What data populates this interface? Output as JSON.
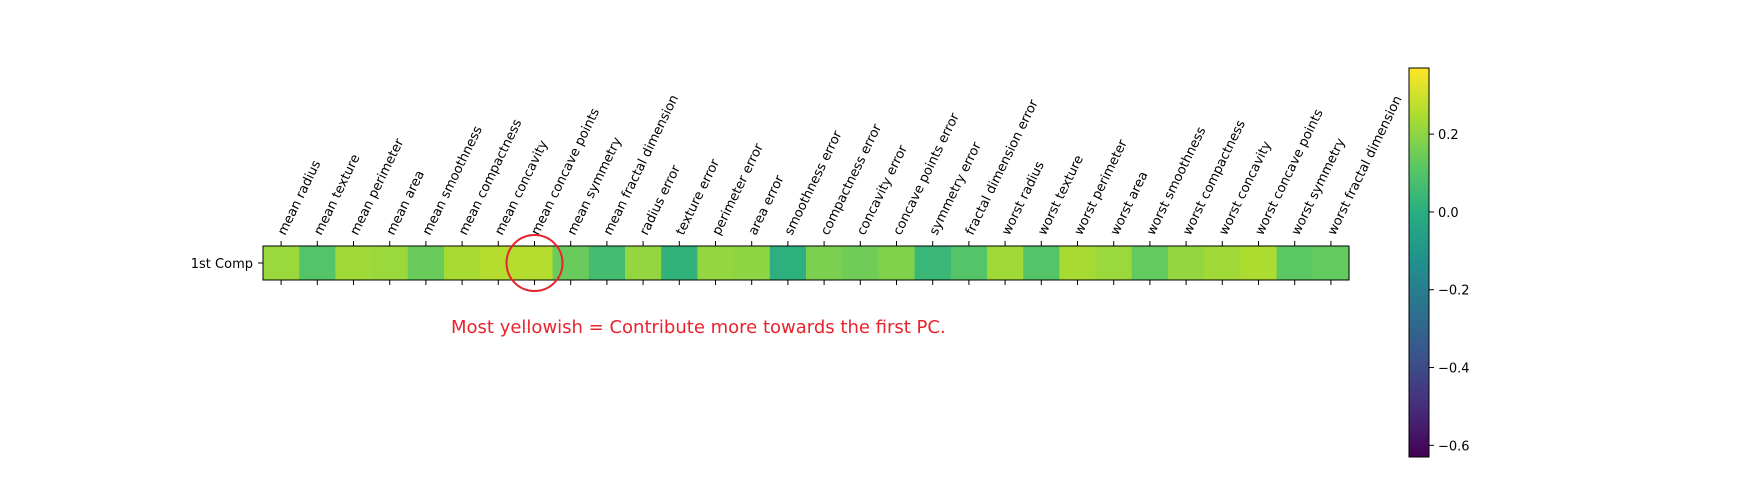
{
  "chart_data": {
    "type": "heatmap",
    "rows": [
      "1st Comp"
    ],
    "columns": [
      "mean radius",
      "mean texture",
      "mean perimeter",
      "mean area",
      "mean smoothness",
      "mean compactness",
      "mean concavity",
      "mean concave points",
      "mean symmetry",
      "mean fractal dimension",
      "radius error",
      "texture error",
      "perimeter error",
      "area error",
      "smoothness error",
      "compactness error",
      "concavity error",
      "concave points error",
      "symmetry error",
      "fractal dimension error",
      "worst radius",
      "worst texture",
      "worst perimeter",
      "worst area",
      "worst smoothness",
      "worst compactness",
      "worst concavity",
      "worst concave points",
      "worst symmetry",
      "worst fractal dimension"
    ],
    "values": [
      [
        0.22,
        0.1,
        0.23,
        0.22,
        0.14,
        0.24,
        0.26,
        0.26,
        0.14,
        0.06,
        0.21,
        0.02,
        0.21,
        0.2,
        0.01,
        0.17,
        0.15,
        0.18,
        0.04,
        0.1,
        0.23,
        0.1,
        0.24,
        0.22,
        0.13,
        0.21,
        0.23,
        0.25,
        0.12,
        0.13
      ]
    ],
    "colormap": "viridis",
    "vmin": -0.63,
    "vmax": 0.37,
    "colorbar_ticks": [
      0.2,
      0.0,
      -0.2,
      -0.4,
      -0.6
    ],
    "colorbar_tick_labels": [
      "0.2",
      "0.0",
      "−0.2",
      "−0.4",
      "−0.6"
    ],
    "annotation": {
      "text": "Most yellowish = Contribute more towards the first PC.",
      "color": "#e8232d",
      "highlighted_column": "mean concave points"
    }
  }
}
